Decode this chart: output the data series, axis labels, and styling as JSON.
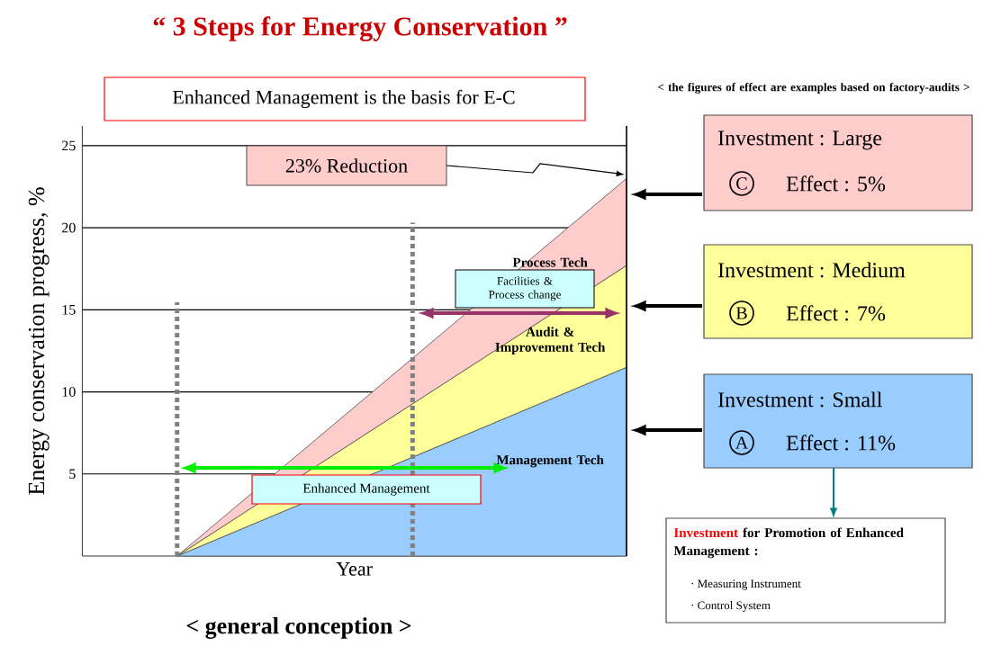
{
  "chart_data": {
    "type": "area",
    "stacked": true,
    "title": "“ 3 Steps for Energy Conservation ”",
    "xlabel": "Year",
    "ylabel": "Energy conservation progress, %",
    "categories": [
      null,
      null
    ],
    "series": [
      {
        "name": "Management Tech",
        "color": "#99ccff",
        "values": [
          0,
          11.5
        ]
      },
      {
        "name": "Audit & Improvement Tech",
        "color": "#ffff99",
        "values": [
          0,
          6.2
        ]
      },
      {
        "name": "Process Tech",
        "color": "#ffcccc",
        "values": [
          0,
          5.3
        ]
      }
    ],
    "ylim": [
      0,
      26.2
    ],
    "yticks": [
      5,
      10,
      15,
      20,
      25
    ],
    "grid": "y",
    "tick_labels": "y",
    "annotations": [
      "Enhanced Management is the basis for E-C",
      "< the figures of effect are examples based on factory-audits >",
      "23% Reduction",
      "Facilities & Process change",
      "Enhanced Management",
      "Investment : Large",
      "C",
      "Effect : 5%",
      "Investment : Medium",
      "B",
      "Effect : 7%",
      "Investment : Small",
      "A",
      "Effect : 11%",
      "Investment",
      "for Promotion of Enhanced Management :",
      "· Measuring Instrument",
      "· Control System",
      "< general conception >"
    ]
  }
}
